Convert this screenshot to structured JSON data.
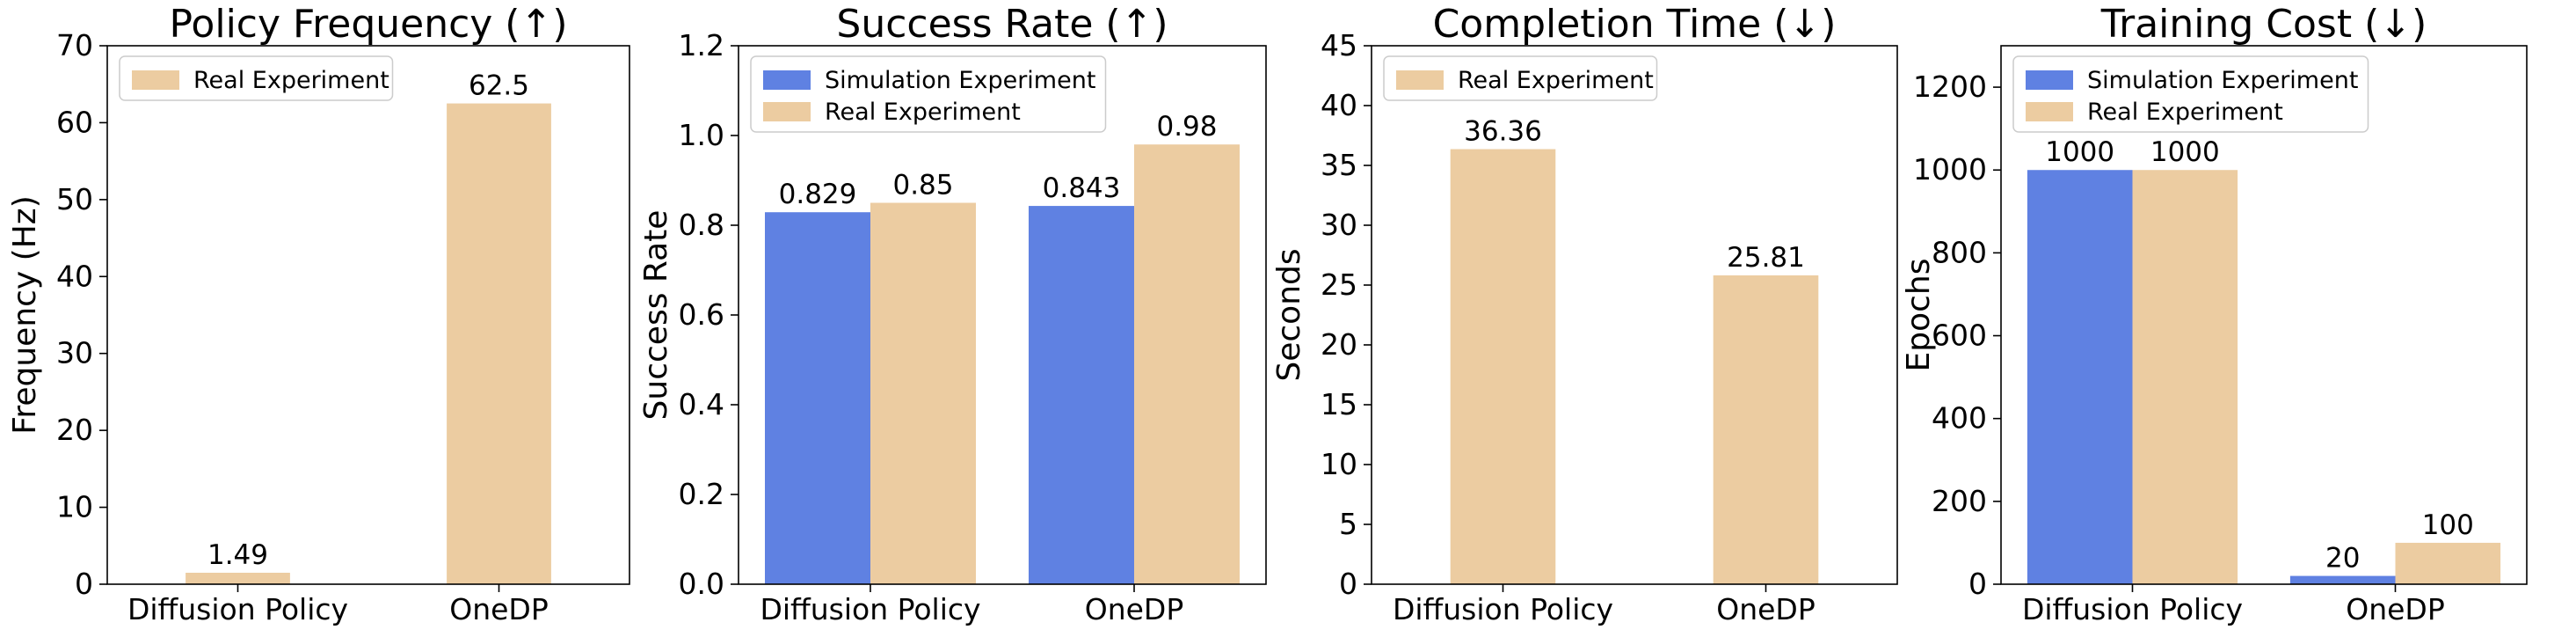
{
  "colors": {
    "simulation": "#5f81e2",
    "real": "#eccca1"
  },
  "chart_data": [
    {
      "type": "bar",
      "title": "Policy Frequency (↑)",
      "ylabel": "Frequency (Hz)",
      "xlabel": "",
      "categories": [
        "Diffusion Policy",
        "OneDP"
      ],
      "ylim": [
        0,
        70
      ],
      "yticks": [
        0,
        10,
        20,
        30,
        40,
        50,
        60,
        70
      ],
      "ytick_labels": [
        "0",
        "10",
        "20",
        "30",
        "40",
        "50",
        "60",
        "70"
      ],
      "legend_position": "top-left",
      "grid": false,
      "series": [
        {
          "name": "Real Experiment",
          "color": "#eccca1",
          "values": [
            1.49,
            62.5
          ],
          "labels": [
            "1.49",
            "62.5"
          ]
        }
      ]
    },
    {
      "type": "bar",
      "title": "Success Rate (↑)",
      "ylabel": "Success Rate",
      "xlabel": "",
      "categories": [
        "Diffusion Policy",
        "OneDP"
      ],
      "ylim": [
        0,
        1.2
      ],
      "yticks": [
        0,
        0.2,
        0.4,
        0.6,
        0.8,
        1.0,
        1.2
      ],
      "ytick_labels": [
        "0.0",
        "0.2",
        "0.4",
        "0.6",
        "0.8",
        "1.0",
        "1.2"
      ],
      "legend_position": "top-left",
      "grid": false,
      "series": [
        {
          "name": "Simulation Experiment",
          "color": "#5f81e2",
          "values": [
            0.829,
            0.843
          ],
          "labels": [
            "0.829",
            "0.843"
          ]
        },
        {
          "name": "Real Experiment",
          "color": "#eccca1",
          "values": [
            0.85,
            0.98
          ],
          "labels": [
            "0.85",
            "0.98"
          ]
        }
      ]
    },
    {
      "type": "bar",
      "title": "Completion Time (↓)",
      "ylabel": "Seconds",
      "xlabel": "",
      "categories": [
        "Diffusion Policy",
        "OneDP"
      ],
      "ylim": [
        0,
        45
      ],
      "yticks": [
        0,
        5,
        10,
        15,
        20,
        25,
        30,
        35,
        40,
        45
      ],
      "ytick_labels": [
        "0",
        "5",
        "10",
        "15",
        "20",
        "25",
        "30",
        "35",
        "40",
        "45"
      ],
      "legend_position": "top-left",
      "grid": false,
      "series": [
        {
          "name": "Real Experiment",
          "color": "#eccca1",
          "values": [
            36.36,
            25.81
          ],
          "labels": [
            "36.36",
            "25.81"
          ]
        }
      ]
    },
    {
      "type": "bar",
      "title": "Training Cost (↓)",
      "ylabel": "Epochs",
      "xlabel": "",
      "categories": [
        "Diffusion Policy",
        "OneDP"
      ],
      "ylim": [
        0,
        1300
      ],
      "yticks": [
        0,
        200,
        400,
        600,
        800,
        1000,
        1200
      ],
      "ytick_labels": [
        "0",
        "200",
        "400",
        "600",
        "800",
        "1000",
        "1200"
      ],
      "legend_position": "top-left",
      "grid": false,
      "series": [
        {
          "name": "Simulation Experiment",
          "color": "#5f81e2",
          "values": [
            1000,
            20
          ],
          "labels": [
            "1000",
            "20"
          ]
        },
        {
          "name": "Real Experiment",
          "color": "#eccca1",
          "values": [
            1000,
            100
          ],
          "labels": [
            "1000",
            "100"
          ]
        }
      ]
    }
  ]
}
